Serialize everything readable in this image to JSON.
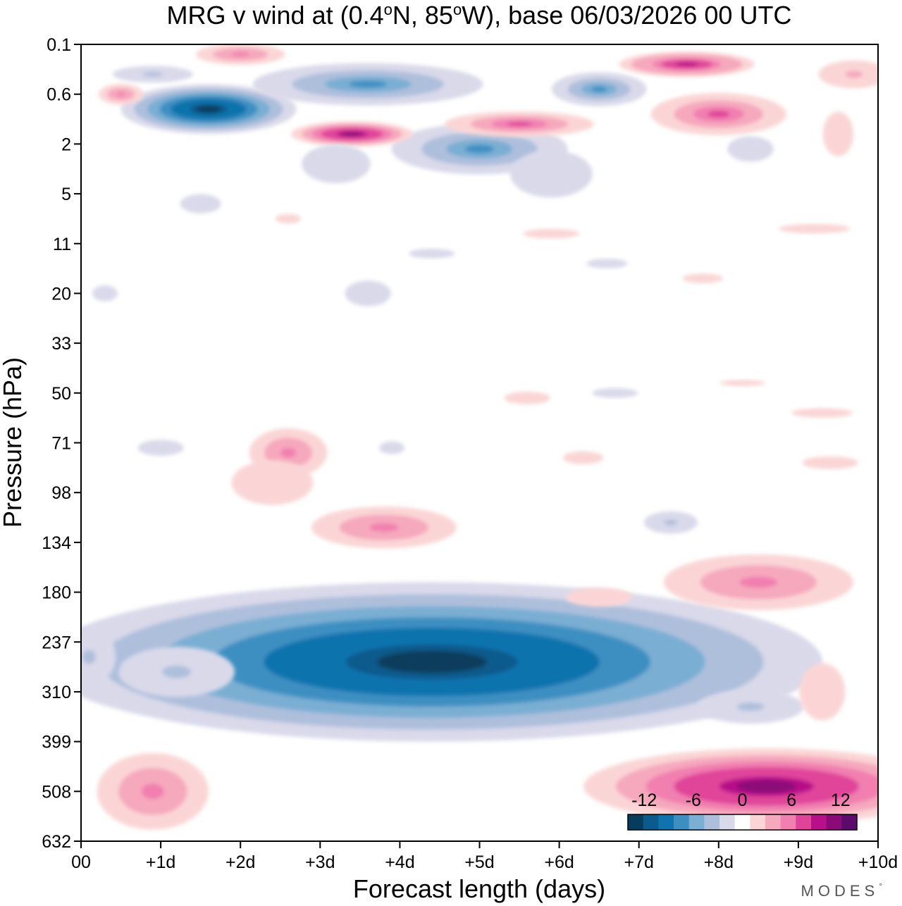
{
  "chart_data": {
    "type": "contour",
    "title": "MRG v wind at (0.4°N, 85°W),  base 06/03/2026  00 UTC",
    "title_parts": {
      "prefix": "MRG v wind at (0.4",
      "sup1": "o",
      "mid": "N, 85",
      "sup2": "o",
      "suffix": "W),  base 06/03/2026  00 UTC"
    },
    "xlabel": "Forecast length (days)",
    "ylabel": "Pressure (hPa)",
    "x_ticks": [
      "00",
      "+1d",
      "+2d",
      "+3d",
      "+4d",
      "+5d",
      "+6d",
      "+7d",
      "+8d",
      "+9d",
      "+10d"
    ],
    "y_ticks": [
      "0.1",
      "0.6",
      "2",
      "5",
      "11",
      "20",
      "33",
      "50",
      "71",
      "98",
      "134",
      "180",
      "237",
      "310",
      "399",
      "508",
      "632"
    ],
    "xlim": [
      0,
      10
    ],
    "ylim_levels": [
      "0.1",
      "632"
    ],
    "y_scale": "log-pressure (evenly spaced model levels)",
    "colorbar": {
      "levels": [
        -14,
        -12,
        -10,
        -8,
        -6,
        -4,
        -2,
        2,
        4,
        6,
        8,
        10,
        12,
        14
      ],
      "tick_labels": [
        "-12",
        "-6",
        "0",
        "6",
        "12"
      ],
      "colors": [
        "#083c5c",
        "#0a5a8c",
        "#1073ad",
        "#3d8fc2",
        "#7aaed3",
        "#aebfdc",
        "#d9d9ea",
        "#ffffff",
        "#fbd5d6",
        "#f6a8bd",
        "#f17fb0",
        "#e0449a",
        "#b8108a",
        "#8a0a78",
        "#5c0a6c"
      ],
      "placement": "bottom-right"
    },
    "features": [
      {
        "name": "upper-troposphere easterly-phase minimum",
        "days": [
          3.5,
          5.5
        ],
        "pressure_hPa": [
          180,
          310
        ],
        "min_value": -14
      },
      {
        "name": "lower-troposphere positive maximum",
        "days": [
          7.5,
          9.5
        ],
        "pressure_hPa": [
          399,
          508
        ],
        "max_value": 12
      },
      {
        "name": "stratospheric negative cell",
        "days": [
          1.3,
          2.5
        ],
        "pressure_hPa": [
          0.6,
          1
        ],
        "min_value": -14
      },
      {
        "name": "stratospheric positive cell",
        "days": [
          3.2,
          3.8
        ],
        "pressure_hPa": [
          1,
          2
        ],
        "max_value": 12
      },
      {
        "name": "mid-level positive band",
        "days": [
          3.2,
          4.6
        ],
        "pressure_hPa": [
          98,
          134
        ],
        "max_value": 4
      }
    ]
  },
  "brand": "MODES",
  "brand_mark": "°"
}
